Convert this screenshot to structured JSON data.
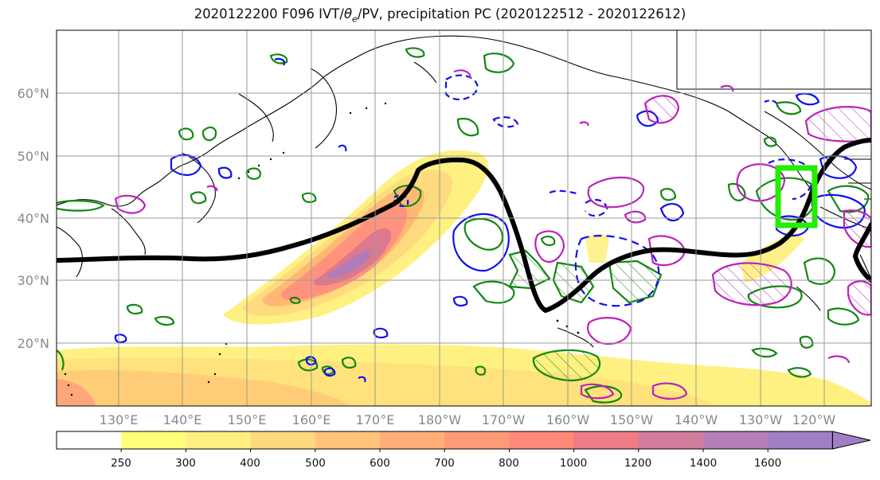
{
  "title": {
    "prefix": "2020122200 F096 IVT/",
    "theta": "θ",
    "theta_sub": "e",
    "suffix": "/PV, precipitation PC (2020122512 - 2020122612)"
  },
  "axes": {
    "lat_labels": [
      "60°N",
      "50°N",
      "40°N",
      "30°N",
      "20°N"
    ],
    "lon_labels": [
      "130°E",
      "140°E",
      "150°E",
      "160°E",
      "170°E",
      "180°W",
      "170°W",
      "160°W",
      "150°W",
      "140°W",
      "130°W",
      "120°W"
    ]
  },
  "colorbar": {
    "labels": [
      "250",
      "300",
      "400",
      "500",
      "600",
      "700",
      "800",
      "1000",
      "1200",
      "1400",
      "1600"
    ],
    "colors": [
      "#ffffff",
      "#ffff7a",
      "#ffee80",
      "#ffd97e",
      "#ffc47a",
      "#ffae77",
      "#ff9a78",
      "#ff8878",
      "#ef7b86",
      "#d27c9e",
      "#b47fb9",
      "#9f7ec6"
    ],
    "extend": "max"
  },
  "colors": {
    "ivt_low": "#fff07a",
    "ivt_mid": "#ffb474",
    "ivt_high": "#ff8a7d",
    "ivt_max": "#b07cb8",
    "pv_contour": "#000000",
    "positive_pc": "#118811",
    "negative_pc": "#1010ee",
    "magenta_pc": "#bb22bb",
    "target_box": "#22ee00",
    "grid": "#9a9a9a",
    "coast": "#000000"
  },
  "icons": {
    "target_box": "green-box-icon"
  }
}
